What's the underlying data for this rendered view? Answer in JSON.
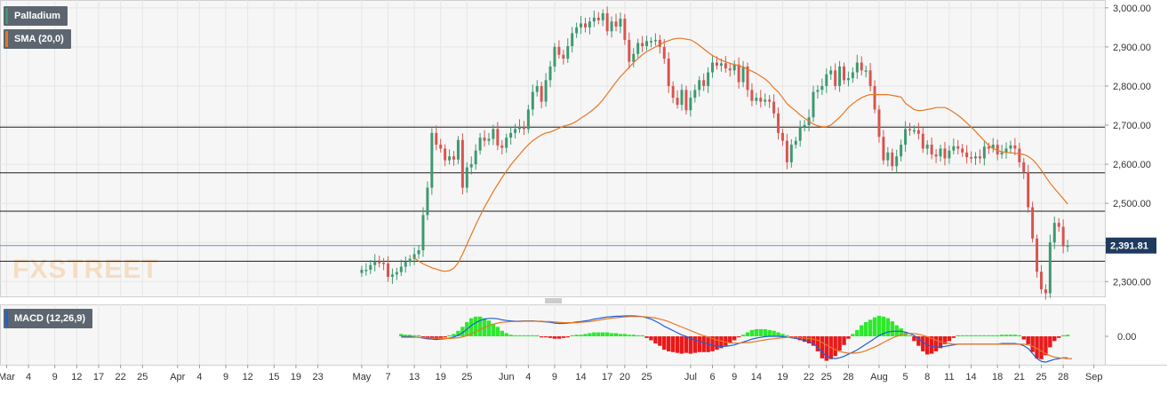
{
  "chart_data": [
    {
      "type": "candlestick",
      "instrument": "Palladium",
      "indicator": "SMA (20,0)",
      "last_price": "2,391.81",
      "y_ticks": [
        "3,000.00",
        "2,900.00",
        "2,800.00",
        "2,700.00",
        "2,600.00",
        "2,500.00",
        "2,400.00",
        "2,300.00"
      ],
      "y_tick_values": [
        3000,
        2900,
        2800,
        2700,
        2600,
        2500,
        2400,
        2300
      ],
      "ylim": [
        2262,
        3020
      ],
      "horizontal_levels": [
        2695,
        2578,
        2480,
        2352
      ],
      "last_price_value": 2392,
      "close": [
        2330,
        2330,
        2342,
        2350,
        2348,
        2346,
        2312,
        2318,
        2324,
        2338,
        2350,
        2358,
        2370,
        2380,
        2470,
        2540,
        2680,
        2650,
        2640,
        2610,
        2620,
        2612,
        2662,
        2540,
        2592,
        2600,
        2635,
        2668,
        2660,
        2665,
        2690,
        2648,
        2642,
        2668,
        2680,
        2690,
        2695,
        2690,
        2740,
        2785,
        2800,
        2760,
        2815,
        2850,
        2900,
        2880,
        2870,
        2902,
        2935,
        2950,
        2960,
        2950,
        2965,
        2975,
        2968,
        2986,
        2940,
        2965,
        2952,
        2972,
        2918,
        2862,
        2882,
        2910,
        2902,
        2915,
        2915,
        2918,
        2900,
        2870,
        2800,
        2770,
        2752,
        2790,
        2738,
        2770,
        2790,
        2815,
        2800,
        2835,
        2860,
        2852,
        2858,
        2845,
        2840,
        2855,
        2810,
        2850,
        2790,
        2762,
        2770,
        2760,
        2765,
        2760,
        2730,
        2680,
        2660,
        2605,
        2650,
        2660,
        2695,
        2700,
        2720,
        2785,
        2790,
        2800,
        2830,
        2840,
        2800,
        2850,
        2815,
        2820,
        2835,
        2860,
        2840,
        2840,
        2800,
        2740,
        2670,
        2610,
        2630,
        2595,
        2620,
        2650,
        2690,
        2687,
        2687,
        2678,
        2640,
        2650,
        2625,
        2620,
        2640,
        2615,
        2635,
        2646,
        2640,
        2630,
        2618,
        2615,
        2620,
        2615,
        2645,
        2640,
        2650,
        2625,
        2630,
        2640,
        2648,
        2640,
        2605,
        2580,
        2490,
        2410,
        2325,
        2280,
        2270,
        2400,
        2450,
        2440,
        2390,
        2392
      ],
      "sma20": [
        2360,
        2352,
        2345,
        2340,
        2335,
        2332,
        2328,
        2326,
        2328,
        2334,
        2348,
        2370,
        2395,
        2420,
        2445,
        2468,
        2490,
        2510,
        2530,
        2548,
        2566,
        2582,
        2598,
        2612,
        2625,
        2638,
        2650,
        2660,
        2668,
        2675,
        2680,
        2682,
        2687,
        2692,
        2697,
        2700,
        2704,
        2710,
        2718,
        2725,
        2733,
        2742,
        2752,
        2765,
        2780,
        2795,
        2810,
        2824,
        2836,
        2848,
        2860,
        2870,
        2880,
        2888,
        2894,
        2900,
        2906,
        2912,
        2916,
        2920,
        2922,
        2922,
        2920,
        2918,
        2912,
        2904,
        2895,
        2886,
        2878,
        2872,
        2866,
        2862,
        2858,
        2855,
        2852,
        2848,
        2843,
        2838,
        2832,
        2825,
        2818,
        2808,
        2795,
        2785,
        2770,
        2755,
        2745,
        2736,
        2726,
        2718,
        2710,
        2703,
        2698,
        2696,
        2696,
        2700,
        2710,
        2720,
        2732,
        2745,
        2755,
        2763,
        2770,
        2775,
        2778,
        2778,
        2778,
        2778,
        2778,
        2776,
        2774,
        2772,
        2756,
        2748,
        2740,
        2737,
        2738,
        2740,
        2742,
        2745,
        2745,
        2745,
        2740,
        2733,
        2725,
        2716,
        2706,
        2695,
        2684,
        2672,
        2660,
        2648,
        2640,
        2635,
        2632,
        2630,
        2629,
        2628,
        2627,
        2625,
        2620,
        2612,
        2600,
        2585,
        2568,
        2552,
        2538,
        2525,
        2512,
        2498
      ]
    },
    {
      "type": "macd",
      "label": "MACD (12,26,9)",
      "y_ticks": [
        "0.00"
      ],
      "macd": [
        0,
        -1,
        -1,
        -2,
        -3,
        -5,
        -7,
        -8,
        -9,
        -8,
        -7,
        -5,
        -2,
        3,
        10,
        20,
        30,
        38,
        44,
        48,
        50,
        50,
        49,
        46,
        44,
        43,
        42,
        42,
        43,
        43,
        43,
        42,
        41,
        40,
        39,
        37,
        36,
        36,
        37,
        38,
        40,
        41,
        43,
        45,
        48,
        50,
        52,
        54,
        55,
        56,
        56,
        57,
        57,
        57,
        56,
        55,
        52,
        48,
        42,
        36,
        28,
        22,
        16,
        10,
        4,
        0,
        -6,
        -10,
        -14,
        -18,
        -22,
        -25,
        -27,
        -28,
        -28,
        -26,
        -24,
        -20,
        -16,
        -12,
        -8,
        -5,
        -3,
        -1,
        0,
        0,
        0,
        -1,
        -2,
        -4,
        -6,
        -9,
        -12,
        -15,
        -20,
        -30,
        -45,
        -55,
        -60,
        -62,
        -60,
        -56,
        -50,
        -44,
        -38,
        -30,
        -22,
        -14,
        -6,
        2,
        8,
        12,
        14,
        14,
        14,
        12,
        8,
        2,
        -6,
        -16,
        -24,
        -28,
        -30,
        -30,
        -28,
        -26,
        -24,
        -22,
        -22,
        -22,
        -22,
        -22,
        -22,
        -22,
        -22,
        -22,
        -22,
        -20,
        -20,
        -20,
        -20,
        -22,
        -26,
        -34,
        -48,
        -62,
        -70,
        -72,
        -68,
        -64,
        -62,
        -60,
        -60
      ],
      "signal": [
        -3,
        -3,
        -3,
        -3,
        -3,
        -4,
        -4,
        -5,
        -5,
        -6,
        -6,
        -6,
        -5,
        -4,
        -2,
        2,
        7,
        13,
        19,
        25,
        30,
        34,
        37,
        39,
        40,
        41,
        41,
        41,
        42,
        42,
        42,
        42,
        42,
        41,
        41,
        40,
        39,
        38,
        38,
        38,
        38,
        39,
        40,
        41,
        43,
        45,
        47,
        49,
        51,
        52,
        53,
        54,
        55,
        55,
        55,
        55,
        54,
        53,
        51,
        48,
        45,
        41,
        36,
        31,
        26,
        21,
        16,
        11,
        6,
        2,
        -2,
        -6,
        -10,
        -13,
        -16,
        -18,
        -19,
        -19,
        -18,
        -17,
        -16,
        -14,
        -12,
        -10,
        -8,
        -7,
        -5,
        -4,
        -3,
        -3,
        -3,
        -4,
        -5,
        -6,
        -8,
        -11,
        -17,
        -24,
        -31,
        -37,
        -42,
        -45,
        -47,
        -47,
        -46,
        -44,
        -40,
        -35,
        -30,
        -24,
        -17,
        -11,
        -5,
        0,
        4,
        7,
        8,
        8,
        6,
        3,
        -1,
        -6,
        -11,
        -15,
        -18,
        -20,
        -22,
        -22,
        -22,
        -22,
        -22,
        -22,
        -22,
        -22,
        -22,
        -22,
        -22,
        -22,
        -22,
        -22,
        -22,
        -22,
        -22,
        -24,
        -28,
        -34,
        -41,
        -48,
        -54,
        -58,
        -60,
        -61,
        -62,
        -62
      ]
    }
  ],
  "x_ticks": [
    {
      "label": "Mar",
      "i": 1
    },
    {
      "label": "4",
      "i": 6
    },
    {
      "label": "9",
      "i": 12
    },
    {
      "label": "12",
      "i": 17
    },
    {
      "label": "17",
      "i": 22
    },
    {
      "label": "22",
      "i": 27
    },
    {
      "label": "25",
      "i": 32
    },
    {
      "label": "Apr",
      "i": 40
    },
    {
      "label": "4",
      "i": 45
    },
    {
      "label": "9",
      "i": 51
    },
    {
      "label": "12",
      "i": 56
    },
    {
      "label": "15",
      "i": 62
    },
    {
      "label": "19",
      "i": 67
    },
    {
      "label": "23",
      "i": 72
    },
    {
      "label": "May",
      "i": 82
    },
    {
      "label": "7",
      "i": 88
    },
    {
      "label": "13",
      "i": 94
    },
    {
      "label": "19",
      "i": 100
    },
    {
      "label": "25",
      "i": 106
    },
    {
      "label": "Jun",
      "i": 115
    },
    {
      "label": "4",
      "i": 120
    },
    {
      "label": "9",
      "i": 126
    },
    {
      "label": "14",
      "i": 132
    },
    {
      "label": "17",
      "i": 138
    },
    {
      "label": "20",
      "i": 142
    },
    {
      "label": "25",
      "i": 147
    },
    {
      "label": "Jul",
      "i": 157
    },
    {
      "label": "6",
      "i": 162
    },
    {
      "label": "9",
      "i": 167
    },
    {
      "label": "14",
      "i": 172
    },
    {
      "label": "19",
      "i": 178
    },
    {
      "label": "22",
      "i": 184
    },
    {
      "label": "25",
      "i": 188
    },
    {
      "label": "28",
      "i": 193
    },
    {
      "label": "Aug",
      "i": 200
    },
    {
      "label": "5",
      "i": 206
    },
    {
      "label": "8",
      "i": 211
    },
    {
      "label": "11",
      "i": 216
    },
    {
      "label": "14",
      "i": 221
    },
    {
      "label": "18",
      "i": 227
    },
    {
      "label": "21",
      "i": 232
    },
    {
      "label": "25",
      "i": 237
    },
    {
      "label": "28",
      "i": 242
    },
    {
      "label": "Sep",
      "i": 249
    }
  ],
  "watermark": "FXSTREET",
  "colors": {
    "up": "#3d9970",
    "down": "#d9534f",
    "sma": "#e87722",
    "macd": "#1f5fd6",
    "signal": "#e87722",
    "hist_pos": "#2ee82e",
    "hist_neg": "#e8191b",
    "grid": "#e6e6e6",
    "level": "#1a1a1a",
    "tag_bg": "#5d6670",
    "price_tag": "#1e3a5f"
  }
}
